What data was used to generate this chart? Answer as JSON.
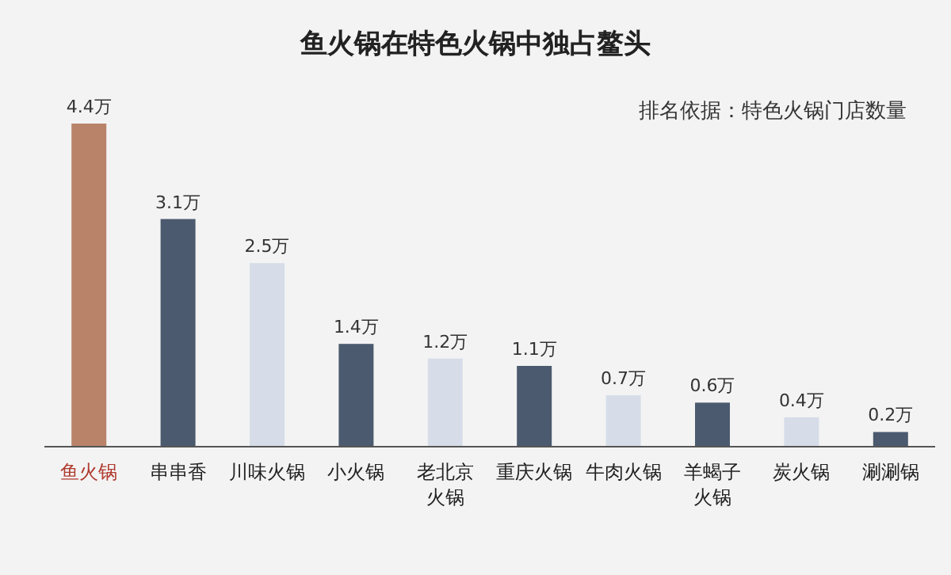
{
  "chart_data": {
    "type": "bar",
    "title": "鱼火锅在特色火锅中独占鳌头",
    "annotations": [
      "排名依据：特色火锅门店数量"
    ],
    "categories": [
      "鱼火锅",
      "串串香",
      "川味火锅",
      "小火锅",
      "老北京火锅",
      "重庆火锅",
      "牛肉火锅",
      "羊蝎子火锅",
      "炭火锅",
      "涮涮锅"
    ],
    "values": [
      4.4,
      3.1,
      2.5,
      1.4,
      1.2,
      1.1,
      0.7,
      0.6,
      0.4,
      0.2
    ],
    "value_labels": [
      "4.4万",
      "3.1万",
      "2.5万",
      "1.4万",
      "1.2万",
      "1.1万",
      "0.7万",
      "0.6万",
      "0.4万",
      "0.2万"
    ],
    "colors": [
      "#b9836a",
      "#4b5a6e",
      "#d6dde8",
      "#4b5a6e",
      "#d6dde8",
      "#4b5a6e",
      "#d6dde8",
      "#4b5a6e",
      "#d6dde8",
      "#4b5a6e"
    ]
  }
}
